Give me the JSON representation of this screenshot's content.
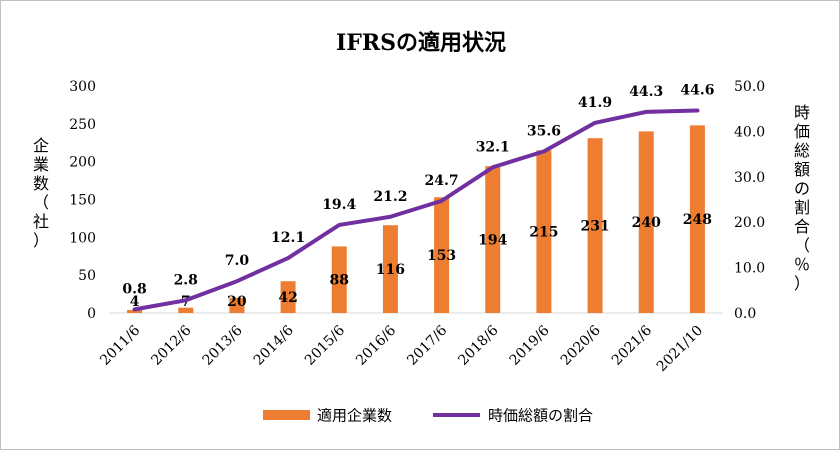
{
  "chart_data": {
    "type": "bar+line",
    "title": "IFRSの適用状況",
    "categories": [
      "2011/6",
      "2012/6",
      "2013/6",
      "2014/6",
      "2015/6",
      "2016/6",
      "2017/6",
      "2018/6",
      "2019/6",
      "2020/6",
      "2021/6",
      "2021/10"
    ],
    "series": [
      {
        "name": "適用企業数",
        "type": "bar",
        "axis": "left",
        "color": "#ed7d31",
        "values": [
          4,
          7,
          20,
          42,
          88,
          116,
          153,
          194,
          215,
          231,
          240,
          248
        ]
      },
      {
        "name": "時価総額の割合",
        "type": "line",
        "axis": "right",
        "color": "#7030a0",
        "values": [
          0.8,
          2.8,
          7.0,
          12.1,
          19.4,
          21.2,
          24.7,
          32.1,
          35.6,
          41.9,
          44.3,
          44.6
        ],
        "labels": [
          "0.8",
          "2.8",
          "7.0",
          "12.1",
          "19.4",
          "21.2",
          "24.7",
          "32.1",
          "35.6",
          "41.9",
          "44.3",
          "44.6"
        ]
      }
    ],
    "y_left": {
      "label": "企業数（社）",
      "ylim": [
        0,
        300
      ],
      "ticks": [
        "0",
        "50",
        "100",
        "150",
        "200",
        "250",
        "300"
      ]
    },
    "y_right": {
      "label": "時価総額の割合（％）",
      "ylim": [
        0,
        50
      ],
      "ticks": [
        "0.0",
        "10.0",
        "20.0",
        "30.0",
        "40.0",
        "50.0"
      ]
    },
    "grid": false,
    "legend_position": "bottom"
  }
}
